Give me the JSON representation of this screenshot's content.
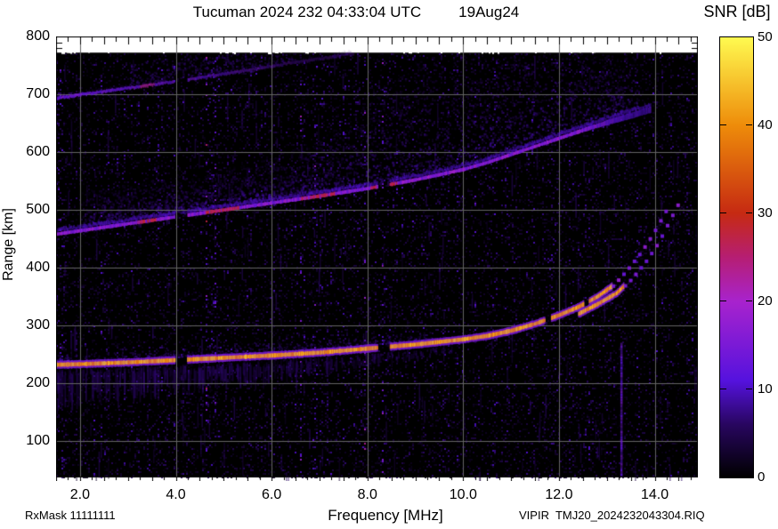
{
  "title": {
    "station_time": "Tucuman 2024 232 04:33:04 UTC",
    "date": "19Aug24"
  },
  "colorbar": {
    "label": "SNR [dB]",
    "tick_values": [
      0,
      10,
      20,
      30,
      40,
      50
    ],
    "tick_labels": [
      "0",
      "10",
      "20",
      "30",
      "40",
      "50"
    ],
    "min": 0,
    "max": 50
  },
  "axes": {
    "x": {
      "label": "Frequency [MHz]",
      "tick_labels": [
        "2.0",
        "4.0",
        "6.0",
        "8.0",
        "10.0",
        "12.0",
        "14.0"
      ],
      "tick_values": [
        2,
        4,
        6,
        8,
        10,
        12,
        14
      ],
      "min": 1.5,
      "max": 14.9,
      "minor_step": 0.25
    },
    "y": {
      "label": "Range [km]",
      "tick_labels": [
        "100",
        "200",
        "300",
        "400",
        "500",
        "600",
        "700",
        "800"
      ],
      "tick_values": [
        100,
        200,
        300,
        400,
        500,
        600,
        700,
        800
      ],
      "min": 37,
      "max": 800
    }
  },
  "footer": {
    "rx_mask": "RxMask 11111111",
    "instrument_file": "VIPIR  TMJ20_2024232043304.RIQ"
  },
  "chart_data": {
    "type": "heatmap",
    "title": "Tucuman 2024 232 04:33:04 UTC  19Aug24 (ionogram)",
    "xlabel": "Frequency [MHz]",
    "ylabel": "Range [km]",
    "zlabel": "SNR [dB]",
    "xlim": [
      1.5,
      14.9
    ],
    "ylim": [
      37,
      800
    ],
    "zlim": [
      0,
      50
    ],
    "grid": true,
    "data_top_km": 772,
    "background": "black with sparse 0-8 dB purple speckle noise in vertical streaks",
    "colormap_stops": [
      [
        0,
        0,
        0,
        0
      ],
      [
        0.12,
        40,
        6,
        95
      ],
      [
        0.22,
        85,
        18,
        222
      ],
      [
        0.4,
        168,
        35,
        205
      ],
      [
        0.5,
        182,
        30,
        115
      ],
      [
        0.6,
        198,
        42,
        18
      ],
      [
        0.8,
        238,
        140,
        10
      ],
      [
        1,
        255,
        250,
        80
      ]
    ],
    "series": [
      {
        "id": "hop1_o",
        "name": "F-region echo, 1st hop O-mode trace",
        "snr_db": 42,
        "points": [
          [
            1.5,
            232
          ],
          [
            2,
            233
          ],
          [
            3,
            236
          ],
          [
            4,
            240
          ],
          [
            5,
            244
          ],
          [
            6,
            248
          ],
          [
            7,
            253
          ],
          [
            8,
            260
          ],
          [
            9,
            267
          ],
          [
            10,
            276
          ],
          [
            10.5,
            282
          ],
          [
            11,
            291
          ],
          [
            11.5,
            303
          ],
          [
            12,
            318
          ],
          [
            12.4,
            332
          ],
          [
            12.8,
            350
          ],
          [
            13.1,
            368
          ],
          [
            13.4,
            396
          ],
          [
            13.7,
            428
          ],
          [
            13.95,
            460
          ],
          [
            14.15,
            490
          ],
          [
            14.3,
            512
          ]
        ],
        "orange_until_mhz": 13.1,
        "gaps": [
          [
            3.97,
            4.22
          ],
          [
            8.2,
            8.45
          ],
          [
            11.7,
            11.82
          ],
          [
            12.5,
            12.62
          ]
        ]
      },
      {
        "id": "hop1_x",
        "name": "F-region echo, 1st hop X-mode branch (cusp)",
        "snr_db": 38,
        "points": [
          [
            12.4,
            320
          ],
          [
            12.8,
            337
          ],
          [
            13.2,
            356
          ],
          [
            13.5,
            381
          ],
          [
            13.8,
            412
          ],
          [
            14.05,
            443
          ],
          [
            14.25,
            476
          ],
          [
            14.45,
            508
          ]
        ],
        "orange_until_mhz": 13.35,
        "gaps": []
      },
      {
        "id": "hop2",
        "name": "2nd hop echo with spread-F cloud above",
        "snr_db": 20,
        "points": [
          [
            1.5,
            458
          ],
          [
            2,
            464
          ],
          [
            3,
            476
          ],
          [
            4,
            488
          ],
          [
            5,
            500
          ],
          [
            6,
            512
          ],
          [
            7,
            524
          ],
          [
            8,
            537
          ],
          [
            9,
            552
          ],
          [
            10,
            570
          ],
          [
            10.5,
            582
          ],
          [
            11,
            596
          ],
          [
            11.5,
            610
          ],
          [
            12,
            624
          ],
          [
            12.5,
            638
          ],
          [
            13,
            651
          ],
          [
            13.5,
            663
          ],
          [
            13.9,
            673
          ]
        ],
        "gaps": [
          [
            3.97,
            4.22
          ],
          [
            8.2,
            8.45
          ]
        ],
        "hot_segments": [
          [
            3.2,
            3.6
          ],
          [
            4.6,
            5.3
          ],
          [
            6.6,
            7.3
          ],
          [
            8.05,
            8.6
          ]
        ]
      },
      {
        "id": "hop3",
        "name": "3rd hop echo (faint, upper left)",
        "snr_db": 10,
        "points": [
          [
            1.5,
            694
          ],
          [
            2,
            701
          ],
          [
            3,
            712
          ],
          [
            4,
            724
          ],
          [
            5,
            737
          ],
          [
            6,
            750
          ],
          [
            6.5,
            757
          ],
          [
            7,
            763
          ],
          [
            7.6,
            771
          ]
        ],
        "gaps": [
          [
            3.97,
            4.22
          ]
        ],
        "hot_segments": [
          [
            3.25,
            3.55
          ]
        ]
      },
      {
        "id": "rfi",
        "name": "RFI vertical interference line",
        "snr_db": 15,
        "frequency_mhz": 13.3,
        "range_km": [
          40,
          270
        ]
      }
    ]
  }
}
